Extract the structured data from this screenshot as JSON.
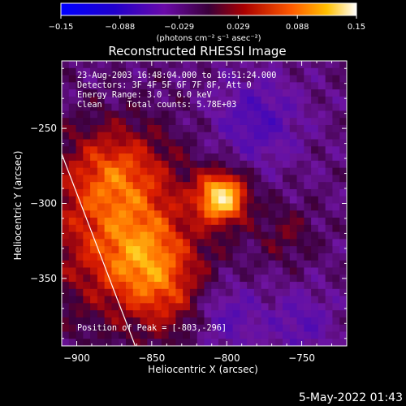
{
  "colorbar": {
    "ticks": [
      "-0.15",
      "-0.088",
      "-0.029",
      "0.029",
      "0.088",
      "0.15"
    ],
    "units": "(photons cm⁻² s⁻¹ asec⁻²)"
  },
  "colors": {
    "background": "#000000",
    "text": "#ffffff",
    "frame": "#ffffff"
  },
  "chart_data": {
    "type": "heatmap",
    "title": "Reconstructed RHESSI Image",
    "xlabel": "Heliocentric X (arcsec)",
    "ylabel": "Heliocentric Y (arcsec)",
    "xlim": [
      -910,
      -720
    ],
    "ylim": [
      -395,
      -205
    ],
    "x_ticks": [
      -900,
      -850,
      -800,
      -750
    ],
    "y_ticks": [
      -250,
      -300,
      -350
    ],
    "x_tick_labels": [
      "−900",
      "−850",
      "−800",
      "−750"
    ],
    "y_tick_labels": [
      "−250",
      "−300",
      "−350"
    ],
    "colorscale_range": [
      -0.15,
      0.15
    ],
    "annotations": [
      "23-Aug-2003 16:48:04.000 to 16:51:24.000",
      "Detectors: 3F 4F 5F 6F 7F 8F, Att 0",
      "Energy Range: 3.0 - 6.0 keV",
      "Clean     Total counts: 5.78E+03"
    ],
    "peak_label": "Position of Peak = [-803,-296]",
    "peak": [
      -803,
      -296
    ],
    "limb_line": [
      [
        -910,
        -267
      ],
      [
        -861,
        -395
      ]
    ]
  },
  "footer": {
    "timestamp": "5-May-2022 01:43"
  }
}
